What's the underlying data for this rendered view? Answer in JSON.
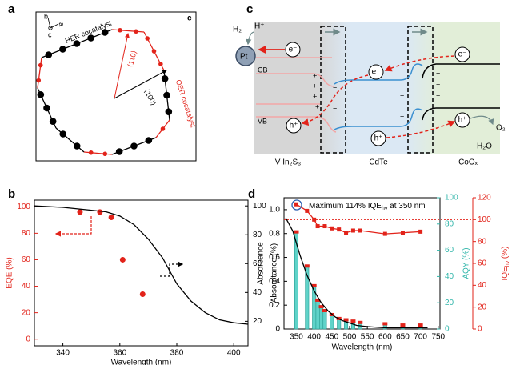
{
  "diagram_a": {
    "label": "a",
    "axes": [
      "b",
      "a",
      "c"
    ],
    "view_axis": "c",
    "her": "HER cocatalyst",
    "oer": "OER cocatalyst",
    "dir_110": "⟨110⟩",
    "dir_100": "⟨100⟩"
  },
  "diagram_c": {
    "label": "c",
    "h_plus": "H⁺",
    "h2": "H₂",
    "pt": "Pt",
    "electron": "e⁻",
    "hole": "h⁺",
    "cb": "CB",
    "vb": "VB",
    "plus": "+",
    "minus": "−",
    "o2": "O₂",
    "h2o": "H₂O",
    "materials": [
      "V-In₂S₃",
      "CdTe",
      "CoOₓ"
    ]
  },
  "chart_data": [
    {
      "type": "combo",
      "label": "b",
      "xlabel": "Wavelength (nm)",
      "ylabel": "EQE (%)",
      "y2label": "Absorptance (%)",
      "xlim": [
        330,
        405
      ],
      "xticks": [
        340,
        360,
        380,
        400
      ],
      "ylim": [
        -5,
        105
      ],
      "yticks": [
        0,
        20,
        40,
        60,
        80,
        100
      ],
      "y2lim": [
        3,
        104
      ],
      "y2ticks": [
        20,
        40,
        60,
        80,
        100
      ],
      "series": [
        {
          "type": "scatter",
          "color": "#e2231a",
          "x": [
            346,
            353,
            357,
            361,
            368
          ],
          "values": [
            96,
            96,
            92,
            60,
            34
          ]
        },
        {
          "type": "line",
          "axis": "y2",
          "color": "#000000",
          "x": [
            330,
            340,
            350,
            355,
            360,
            365,
            370,
            375,
            380,
            385,
            390,
            395,
            400,
            405
          ],
          "values": [
            100,
            99,
            97,
            96,
            93,
            87,
            77,
            64,
            46,
            34,
            26,
            21,
            19,
            18
          ]
        }
      ]
    },
    {
      "type": "combo",
      "label": "d",
      "xlabel": "Wavelength (nm)",
      "ylabel": "Absorbance",
      "y2label": "AQY (%)",
      "y3label": [
        "IQE",
        "hν",
        " (%)"
      ],
      "annotation": [
        "Maximum 114% IQE",
        "hν",
        " at 350 nm"
      ],
      "xlim": [
        315,
        755
      ],
      "xticks": [
        350,
        400,
        450,
        500,
        550,
        600,
        650,
        700,
        750
      ],
      "ylim": [
        0,
        1.1
      ],
      "yticks": [
        0,
        0.2,
        0.4,
        0.6,
        0.8,
        {
          "value": 1,
          "label": "1.0"
        }
      ],
      "y2lim": [
        0,
        100
      ],
      "y2ticks": [
        0,
        20,
        40,
        60,
        80,
        100
      ],
      "y3lim": [
        0,
        120
      ],
      "y3ticks": [
        0,
        20,
        40,
        60,
        80,
        100,
        120
      ],
      "y3_reference": 100,
      "series": [
        {
          "type": "bar",
          "axis": "y2",
          "color": "#5fd3c9",
          "marker_color": "#e2231a",
          "x": [
            350,
            380,
            400,
            410,
            420,
            430,
            450,
            470,
            490,
            510,
            530,
            600,
            650,
            700
          ],
          "values": [
            74,
            48,
            33,
            22,
            17,
            14,
            11,
            8,
            7,
            6,
            5,
            4,
            3,
            3
          ]
        },
        {
          "type": "line",
          "color": "#000000",
          "x": [
            320,
            340,
            350,
            360,
            380,
            400,
            420,
            440,
            460,
            480,
            500,
            520,
            550,
            600,
            650,
            700,
            720
          ],
          "values": [
            0.93,
            0.82,
            0.72,
            0.62,
            0.45,
            0.32,
            0.22,
            0.15,
            0.1,
            0.07,
            0.05,
            0.03,
            0.02,
            0.01,
            0.01,
            0.01,
            0.01
          ]
        },
        {
          "type": "linemarker",
          "axis": "y3",
          "color": "#e2231a",
          "x": [
            350,
            380,
            400,
            410,
            430,
            450,
            470,
            490,
            510,
            530,
            600,
            650,
            700
          ],
          "values": [
            114,
            108,
            100,
            94,
            94,
            92,
            91,
            88,
            90,
            90,
            87,
            88,
            89
          ]
        }
      ]
    }
  ]
}
